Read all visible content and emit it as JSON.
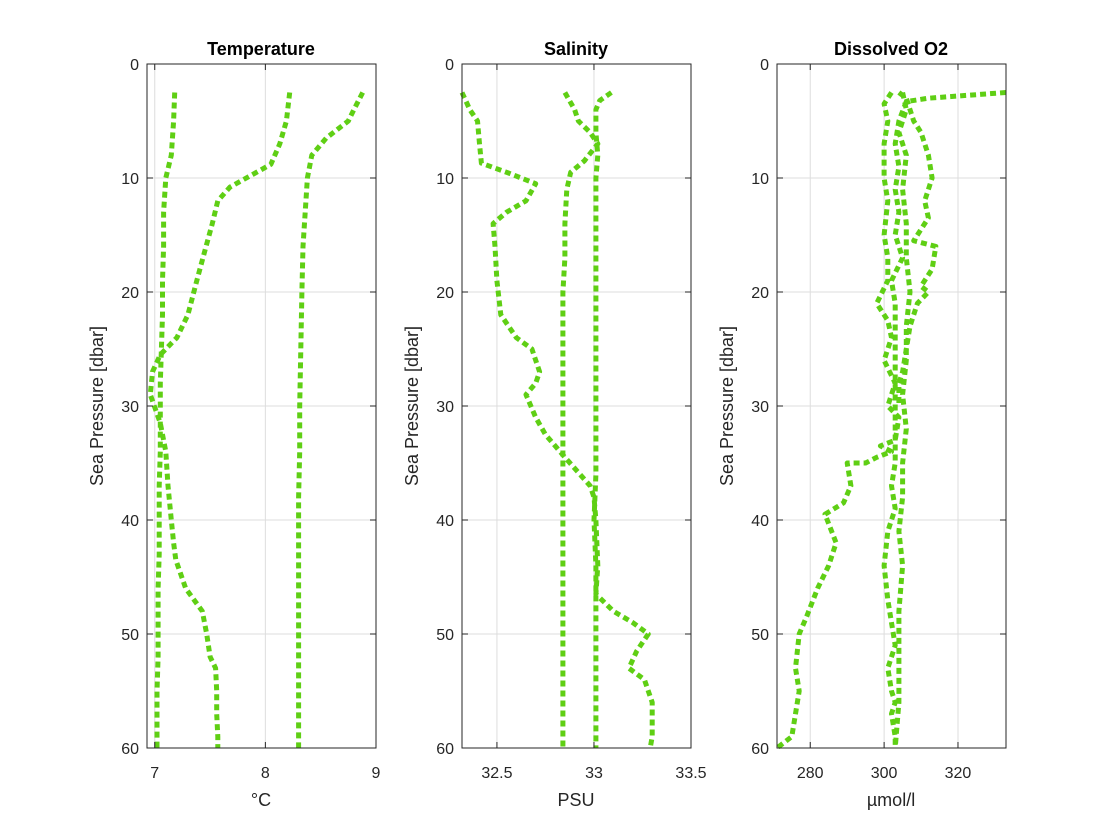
{
  "figure": {
    "background": "#ffffff"
  },
  "style": {
    "line_color": "#5fcf14",
    "grid_color": "#dddddd",
    "axis_color": "#262626"
  },
  "chart_data": [
    {
      "type": "line",
      "title": "Temperature",
      "xlabel": "°C",
      "ylabel": "Sea Pressure [dbar]",
      "xlim": [
        6.93,
        9.0
      ],
      "ylim": [
        0,
        60
      ],
      "y_reversed": true,
      "xticks": [
        7,
        8,
        9
      ],
      "xtick_labels": [
        "7",
        "8",
        "9"
      ],
      "yticks": [
        0,
        10,
        20,
        30,
        40,
        50,
        60
      ],
      "ytick_labels": [
        "0",
        "10",
        "20",
        "30",
        "40",
        "50",
        "60"
      ],
      "grid": true,
      "series": [
        {
          "x": [
            7.18,
            7.17,
            7.15,
            7.1,
            7.08,
            7.08,
            7.07,
            7.07,
            7.06,
            7.05,
            7.05,
            7.05,
            7.04,
            7.04,
            7.04,
            7.03,
            7.03,
            7.03,
            7.02,
            7.02,
            7.02
          ],
          "y": [
            2.5,
            5,
            8,
            10,
            13,
            16,
            19,
            22,
            25,
            28,
            31,
            34,
            37,
            40,
            43,
            46,
            49,
            52,
            55,
            58,
            60
          ]
        },
        {
          "x": [
            8.22,
            8.19,
            8.13,
            8.05,
            7.68,
            7.57,
            7.52,
            7.45,
            7.38,
            7.3,
            7.2,
            7.05,
            6.98,
            6.96,
            7.05,
            7.1,
            7.12,
            7.15,
            7.17,
            7.19,
            7.28,
            7.43,
            7.47,
            7.5,
            7.55,
            7.56,
            7.56,
            7.57,
            7.57
          ],
          "y": [
            2.5,
            5,
            7,
            8.8,
            10.8,
            12,
            14,
            16.5,
            19,
            22,
            24,
            25.5,
            27,
            29,
            31.5,
            34,
            37,
            40,
            42,
            43.5,
            46,
            48,
            50,
            52,
            53,
            55,
            57,
            59,
            60
          ]
        },
        {
          "x": [
            8.88,
            8.8,
            8.75,
            8.55,
            8.42,
            8.38,
            8.36,
            8.34,
            8.33,
            8.32,
            8.31,
            8.31,
            8.3,
            8.3,
            8.3,
            8.3,
            8.3,
            8.3,
            8.3,
            8.3,
            8.3
          ],
          "y": [
            2.5,
            4,
            5,
            6.5,
            8,
            10,
            13,
            16,
            20,
            25,
            30,
            34,
            38,
            42,
            46,
            50,
            53,
            56,
            58,
            59,
            60
          ]
        }
      ]
    },
    {
      "type": "line",
      "title": "Salinity",
      "xlabel": "PSU",
      "ylabel": "Sea Pressure [dbar]",
      "xlim": [
        32.32,
        33.5
      ],
      "ylim": [
        0,
        60
      ],
      "y_reversed": true,
      "xticks": [
        32.5,
        33,
        33.5
      ],
      "xtick_labels": [
        "32.5",
        "33",
        "33.5"
      ],
      "yticks": [
        0,
        10,
        20,
        30,
        40,
        50,
        60
      ],
      "ytick_labels": [
        "0",
        "10",
        "20",
        "30",
        "40",
        "50",
        "60"
      ],
      "grid": true,
      "series": [
        {
          "x": [
            32.32,
            32.36,
            32.4,
            32.41,
            32.42,
            32.55,
            32.7,
            32.65,
            32.55,
            32.48,
            32.49,
            32.5,
            32.52,
            32.6,
            32.68,
            32.72,
            32.7,
            32.65,
            32.7,
            32.75,
            32.85,
            32.98,
            33.0,
            33.01,
            33.02,
            33.01,
            33.1,
            33.2,
            33.28,
            33.22,
            33.18,
            33.26,
            33.3,
            33.3,
            33.3,
            33.29
          ],
          "y": [
            2.5,
            4,
            5,
            7,
            8.7,
            9.5,
            10.5,
            12,
            13,
            14,
            16,
            19,
            22,
            24,
            25,
            27,
            28,
            29,
            31,
            32.5,
            34.5,
            37,
            38,
            40,
            44,
            46.5,
            48,
            49,
            50,
            51.5,
            53,
            54,
            56,
            57,
            59,
            60
          ]
        },
        {
          "x": [
            32.85,
            32.9,
            32.92,
            32.98,
            33.02,
            32.95,
            32.88,
            32.86,
            32.85,
            32.85,
            32.84,
            32.84,
            32.84,
            32.84,
            32.84,
            32.84,
            32.84,
            32.84,
            32.84,
            32.84,
            32.84
          ],
          "y": [
            2.5,
            4,
            5,
            6,
            7,
            8.5,
            9.5,
            11,
            14,
            17,
            20,
            24,
            28,
            32,
            36,
            40,
            44,
            48,
            52,
            56,
            60
          ]
        },
        {
          "x": [
            33.09,
            33.03,
            33.01,
            33.01,
            33.02,
            33.01,
            33.01,
            33.01,
            33.01,
            33.01,
            33.01,
            33.01,
            33.01,
            33.0,
            33.01,
            33.01,
            33.01,
            33.01,
            33.01,
            33.01,
            33.01,
            33.01
          ],
          "y": [
            2.5,
            3.2,
            4,
            6,
            8,
            10,
            13,
            16,
            20,
            24,
            28,
            32,
            36,
            40,
            44,
            46,
            48,
            52,
            55,
            58,
            59,
            60
          ]
        }
      ]
    },
    {
      "type": "line",
      "title": "Dissolved O2",
      "xlabel": "µmol/l",
      "ylabel": "Sea Pressure [dbar]",
      "xlim": [
        271,
        333
      ],
      "ylim": [
        0,
        60
      ],
      "y_reversed": true,
      "xticks": [
        280,
        300,
        320
      ],
      "xtick_labels": [
        "280",
        "300",
        "320"
      ],
      "yticks": [
        0,
        10,
        20,
        30,
        40,
        50,
        60
      ],
      "ytick_labels": [
        "0",
        "10",
        "20",
        "30",
        "40",
        "50",
        "60"
      ],
      "grid": true,
      "series": [
        {
          "x": [
            333,
            312,
            306,
            304,
            303,
            304,
            303,
            304,
            303,
            305,
            302,
            303,
            303,
            303,
            303,
            303,
            303,
            303,
            303,
            302,
            303,
            301,
            300,
            301,
            302,
            303,
            301,
            302,
            303,
            302,
            303,
            303
          ],
          "y": [
            2.5,
            3.0,
            3.3,
            5,
            7,
            9,
            11,
            13,
            15,
            17,
            19,
            21,
            23,
            25,
            27,
            29,
            31,
            33,
            35,
            37,
            39,
            41,
            44,
            47,
            49,
            51,
            53,
            55,
            56,
            57,
            59,
            60
          ]
        },
        {
          "x": [
            302,
            300,
            301,
            300,
            300,
            301,
            300,
            301,
            301,
            298,
            301,
            302,
            300,
            303,
            301,
            304,
            303,
            299,
            302,
            298,
            295,
            290,
            291,
            289,
            284,
            287,
            285,
            282,
            279,
            277,
            276,
            277,
            276,
            275,
            271
          ],
          "y": [
            2.5,
            3.5,
            5,
            7,
            10,
            12,
            15,
            17,
            19,
            21,
            22.5,
            24,
            26,
            28,
            30,
            31,
            33,
            33.5,
            34,
            34.5,
            35,
            35,
            37,
            38.5,
            39.5,
            42,
            44,
            46,
            48.5,
            50,
            53,
            55,
            57,
            59,
            60
          ]
        },
        {
          "x": [
            305,
            306,
            304,
            306,
            305,
            306,
            306,
            307,
            306,
            306,
            305,
            306,
            305,
            305,
            304,
            305,
            304,
            304,
            304,
            303
          ],
          "y": [
            2.5,
            4,
            6,
            8,
            11,
            14,
            17,
            20,
            23,
            26,
            29,
            32,
            35,
            38,
            41,
            44,
            48,
            52,
            56,
            60
          ]
        },
        {
          "x": [
            304,
            306,
            307,
            308,
            310,
            312,
            313,
            311,
            312,
            309,
            308,
            314,
            313,
            310,
            312,
            309,
            307,
            306,
            305,
            304,
            304
          ],
          "y": [
            2.5,
            3,
            4,
            5,
            6,
            8,
            10,
            12,
            13.5,
            15,
            15.5,
            16,
            18,
            19.5,
            20,
            21,
            23,
            25,
            27,
            28,
            30
          ]
        }
      ]
    }
  ]
}
